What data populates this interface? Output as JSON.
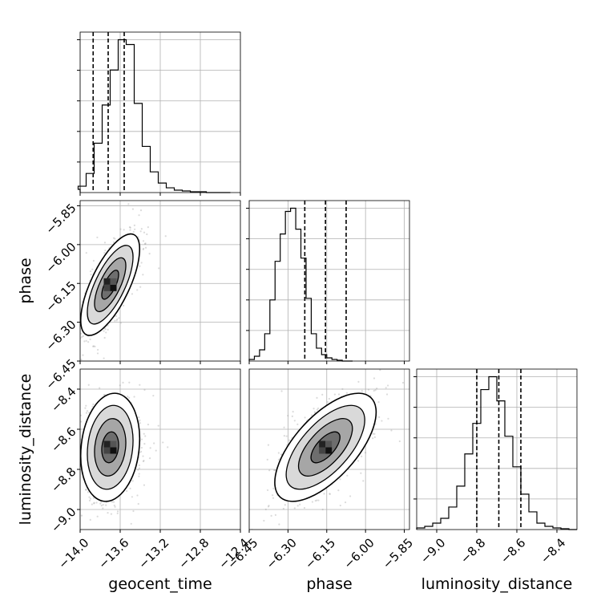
{
  "chart_data": {
    "type": "corner",
    "parameters": [
      "geocent_time",
      "phase",
      "luminosity_distance"
    ],
    "axis_labels": [
      "geocent_time",
      "phase",
      "luminosity_distance"
    ],
    "ranges": {
      "geocent_time": [
        -14.0,
        -12.4
      ],
      "phase": [
        -6.45,
        -5.83
      ],
      "luminosity_distance": [
        -9.1,
        -8.3
      ]
    },
    "ticks": {
      "geocent_time": {
        "values": [
          -14.0,
          -13.6,
          -13.2,
          -12.8,
          -12.4
        ],
        "labels": [
          "−14.0",
          "−13.6",
          "−13.2",
          "−12.8",
          "−12.4"
        ]
      },
      "phase": {
        "values": [
          -6.45,
          -6.3,
          -6.15,
          -6.0,
          -5.85
        ],
        "labels": [
          "−6.45",
          "−6.30",
          "−6.15",
          "−6.00",
          "−5.85"
        ]
      },
      "luminosity_distance": {
        "values": [
          -9.0,
          -8.8,
          -8.6,
          -8.4
        ],
        "labels": [
          "−9.0",
          "−8.8",
          "−8.6",
          "−8.4"
        ]
      }
    },
    "quantiles": {
      "geocent_time": [
        -13.87,
        -13.72,
        -13.56
      ],
      "phase": [
        -6.235,
        -6.155,
        -6.075
      ],
      "luminosity_distance": [
        -8.8,
        -8.69,
        -8.58
      ]
    },
    "histograms": {
      "geocent_time": {
        "edges_start": -14.1,
        "bin_width": 0.08,
        "counts": [
          0.02,
          0.04,
          0.12,
          0.31,
          0.55,
          0.77,
          0.96,
          0.93,
          0.56,
          0.29,
          0.13,
          0.06,
          0.03,
          0.015,
          0.01,
          0.005,
          0.005,
          0,
          0,
          0
        ]
      },
      "phase": {
        "edges_start": -6.45,
        "bin_width": 0.02,
        "counts": [
          0.01,
          0.03,
          0.07,
          0.17,
          0.38,
          0.62,
          0.79,
          0.93,
          0.95,
          0.82,
          0.64,
          0.39,
          0.17,
          0.08,
          0.04,
          0.02,
          0.01,
          0.005,
          0,
          0
        ]
      },
      "luminosity_distance": {
        "edges_start": -9.1,
        "bin_width": 0.04,
        "counts": [
          0.01,
          0.02,
          0.04,
          0.07,
          0.14,
          0.27,
          0.47,
          0.66,
          0.87,
          0.95,
          0.8,
          0.58,
          0.39,
          0.22,
          0.11,
          0.04,
          0.02,
          0.01,
          0.005,
          0
        ]
      }
    },
    "posterior_2d": {
      "phase_vs_geocent_time": {
        "center": [
          -13.7,
          -6.155
        ],
        "sigma": [
          0.12,
          0.08
        ],
        "correlation": 0.7
      },
      "luminosity_distance_vs_geocent_time": {
        "center": [
          -13.7,
          -8.69
        ],
        "sigma": [
          0.12,
          0.11
        ],
        "correlation": 0.15
      },
      "luminosity_distance_vs_phase": {
        "center": [
          -6.155,
          -8.69
        ],
        "sigma": [
          0.08,
          0.11
        ],
        "correlation": 0.65
      }
    },
    "grid": true
  }
}
